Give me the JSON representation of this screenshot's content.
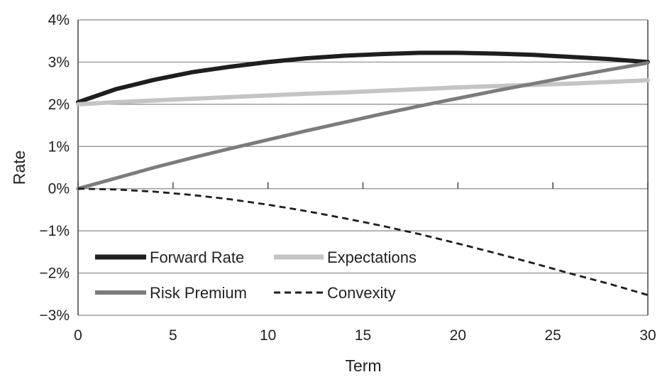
{
  "chart_data": {
    "type": "line",
    "title": "",
    "xlabel": "Term",
    "ylabel": "Rate",
    "xlim": [
      0,
      30
    ],
    "ylim": [
      -3,
      4
    ],
    "x_ticks": [
      0,
      5,
      10,
      15,
      20,
      25,
      30
    ],
    "x_tick_labels": [
      "0",
      "5",
      "10",
      "15",
      "20",
      "25",
      "30"
    ],
    "y_ticks": [
      -3,
      -2,
      -1,
      0,
      1,
      2,
      3,
      4
    ],
    "y_tick_labels": [
      "−3%",
      "−2%",
      "−1%",
      "0%",
      "1%",
      "2%",
      "3%",
      "4%"
    ],
    "grid": "horizontal",
    "legend_position": "lower-left",
    "series": [
      {
        "name": "Forward Rate",
        "color": "#1e1e1e",
        "dash": "solid",
        "x": [
          0,
          2,
          4,
          6,
          8,
          10,
          12,
          14,
          16,
          18,
          20,
          22,
          24,
          26,
          28,
          30
        ],
        "values": [
          2.05,
          2.36,
          2.58,
          2.76,
          2.89,
          3.0,
          3.09,
          3.15,
          3.19,
          3.22,
          3.22,
          3.2,
          3.17,
          3.12,
          3.07,
          3.0
        ]
      },
      {
        "name": "Expectations",
        "color": "#c4c4c4",
        "dash": "solid",
        "x": [
          0,
          2,
          4,
          6,
          8,
          10,
          12,
          14,
          16,
          18,
          20,
          22,
          24,
          26,
          28,
          30
        ],
        "values": [
          2.0,
          2.05,
          2.09,
          2.13,
          2.17,
          2.21,
          2.25,
          2.28,
          2.32,
          2.36,
          2.4,
          2.43,
          2.46,
          2.49,
          2.53,
          2.57
        ]
      },
      {
        "name": "Risk Premium",
        "color": "#7c7c7c",
        "dash": "solid",
        "x": [
          0,
          2,
          4,
          6,
          8,
          10,
          12,
          14,
          16,
          18,
          20,
          22,
          24,
          26,
          28,
          30
        ],
        "values": [
          0.0,
          0.25,
          0.5,
          0.73,
          0.95,
          1.16,
          1.37,
          1.57,
          1.77,
          1.96,
          2.14,
          2.32,
          2.49,
          2.66,
          2.82,
          2.98
        ]
      },
      {
        "name": "Convexity",
        "color": "#1e1e1e",
        "dash": "dashed",
        "x": [
          0,
          2,
          4,
          6,
          8,
          10,
          12,
          14,
          16,
          18,
          20,
          22,
          24,
          26,
          28,
          30
        ],
        "values": [
          0.0,
          -0.02,
          -0.07,
          -0.15,
          -0.25,
          -0.38,
          -0.53,
          -0.7,
          -0.88,
          -1.08,
          -1.3,
          -1.53,
          -1.77,
          -2.02,
          -2.26,
          -2.52
        ]
      }
    ]
  }
}
